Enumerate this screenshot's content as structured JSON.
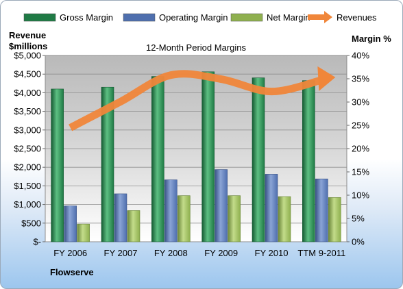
{
  "chart_data": {
    "type": "bar",
    "title": "12-Month Period Margins",
    "left_axis_label_line1": "Revenue",
    "left_axis_label_line2": "$millions",
    "right_axis_label": "Margin %",
    "categories": [
      "FY 2006",
      "FY 2007",
      "FY 2008",
      "FY 2009",
      "FY 2010",
      "TTM 9-2011"
    ],
    "left_ylim": [
      0,
      5000
    ],
    "left_ticks": [
      "$-",
      "$500",
      "$1,000",
      "$1,500",
      "$2,000",
      "$2,500",
      "$3,000",
      "$3,500",
      "$4,000",
      "$4,500",
      "$5,000"
    ],
    "right_ylim": [
      0,
      40
    ],
    "right_ticks": [
      "0%",
      "5%",
      "10%",
      "15%",
      "20%",
      "25%",
      "30%",
      "35%",
      "40%"
    ],
    "grid": true,
    "legend_position": "top",
    "series": [
      {
        "name": "Gross Margin",
        "axis": "right",
        "color": "#1f7a45",
        "values": [
          32.8,
          33.2,
          35.5,
          36.5,
          35.2,
          34.6
        ]
      },
      {
        "name": "Operating Margin",
        "axis": "right",
        "color": "#4f6fae",
        "values": [
          7.7,
          10.3,
          13.3,
          15.5,
          14.5,
          13.5
        ]
      },
      {
        "name": "Net Margin",
        "axis": "right",
        "color": "#8fb04f",
        "values": [
          3.8,
          6.7,
          9.9,
          9.9,
          9.7,
          9.5
        ]
      },
      {
        "name": "Revenues",
        "axis": "left",
        "type": "line",
        "color": "#f0863a",
        "values": [
          3061,
          3762,
          4473,
          4365,
          4032,
          4340
        ]
      }
    ]
  },
  "footer": {
    "company": "Flowserve"
  }
}
